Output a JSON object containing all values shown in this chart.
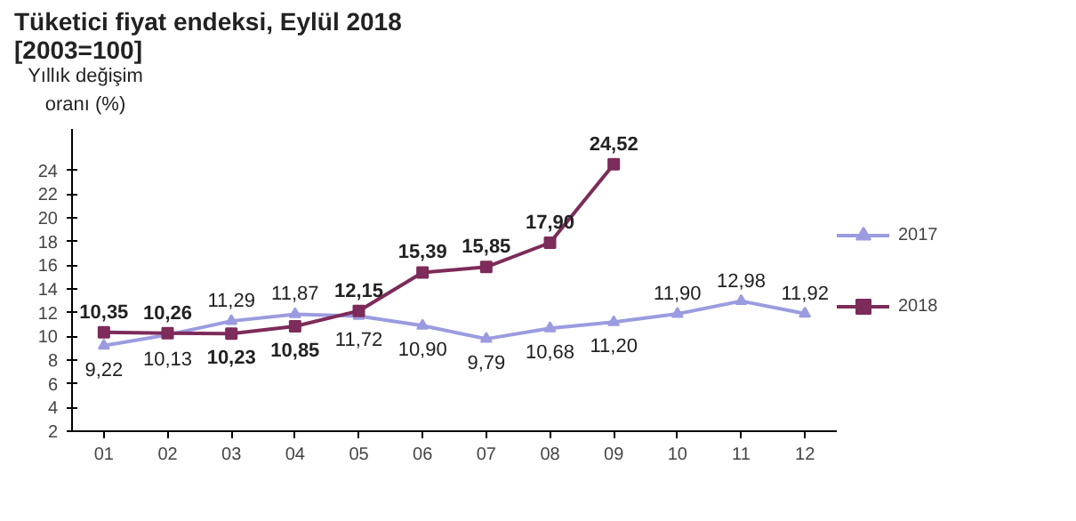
{
  "chart_data": {
    "type": "line",
    "title": "Tüketici fiyat endeksi, Eylül 2018",
    "subtitle": "[2003=100]",
    "ylabel": "Yıllık değişim oranı (%)",
    "categories": [
      "01",
      "02",
      "03",
      "04",
      "05",
      "06",
      "07",
      "08",
      "09",
      "10",
      "11",
      "12"
    ],
    "series": [
      {
        "name": "2017",
        "color": "#9b9be0",
        "marker": "triangle",
        "values": [
          9.22,
          10.13,
          11.29,
          11.87,
          11.72,
          10.9,
          9.79,
          10.68,
          11.2,
          11.9,
          12.98,
          11.92
        ],
        "value_labels": [
          "9,22",
          "10,13",
          "11,29",
          "11,87",
          "11,72",
          "10,90",
          "9,79",
          "10,68",
          "11,20",
          "11,90",
          "12,98",
          "11,92"
        ]
      },
      {
        "name": "2018",
        "color": "#7d2b5a",
        "marker": "square",
        "values": [
          10.35,
          10.26,
          10.23,
          10.85,
          12.15,
          15.39,
          15.85,
          17.9,
          24.52,
          null,
          null,
          null
        ],
        "value_labels": [
          "10,35",
          "10,26",
          "10,23",
          "10,85",
          "12,15",
          "15,39",
          "15,85",
          "17,90",
          "24,52",
          null,
          null,
          null
        ]
      }
    ],
    "ylim": [
      2,
      27.5
    ],
    "yticks": [
      2,
      4,
      6,
      8,
      10,
      12,
      14,
      16,
      18,
      20,
      22,
      24
    ],
    "grid": false,
    "legend": "right",
    "line_style": "solid"
  }
}
